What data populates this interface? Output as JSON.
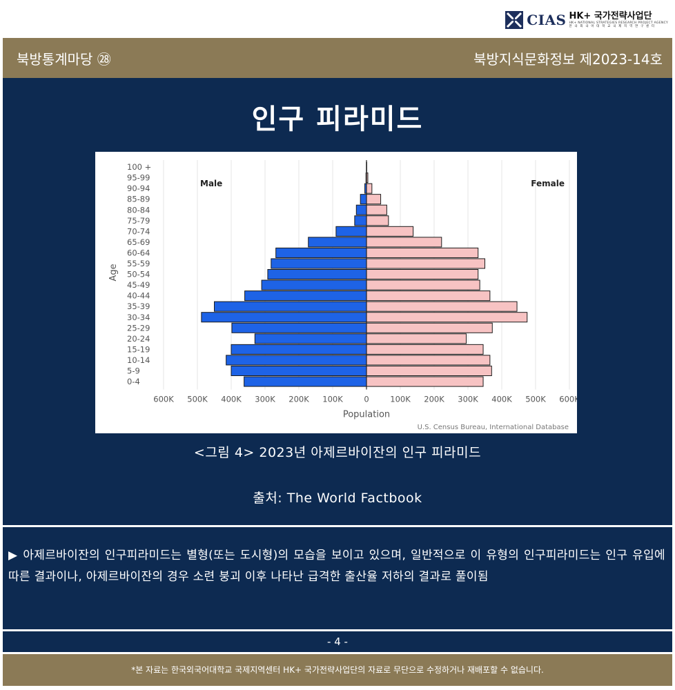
{
  "header": {
    "logo_text": "CIAS",
    "logo_title": "HK+ 국가전략사업단",
    "logo_subtitle": "HK+ NATIONAL STRATEGIES RESEARCH PROJECT AGENCY",
    "logo_subtitle2": "한 국 외 국 어 대 학 교   국 제 지 역 연 구 센 터"
  },
  "topbar": {
    "left": "북방통계마당 ㉘",
    "right": "북방지식문화정보 제2023-14호"
  },
  "title": "인구 피라미드",
  "chart_data": {
    "type": "bar",
    "orientation": "horizontal-pyramid",
    "categories": [
      "0-4",
      "5-9",
      "10-14",
      "15-19",
      "20-24",
      "25-29",
      "30-34",
      "35-39",
      "40-44",
      "45-49",
      "50-54",
      "55-59",
      "60-64",
      "65-69",
      "70-74",
      "75-79",
      "80-84",
      "85-89",
      "90-94",
      "95-99",
      "100 +"
    ],
    "series": [
      {
        "name": "Male",
        "color": "#1e63e6",
        "values": [
          362000,
          400000,
          415000,
          400000,
          330000,
          398000,
          488000,
          450000,
          360000,
          310000,
          292000,
          282000,
          268000,
          172000,
          90000,
          35000,
          30000,
          18000,
          5000,
          1500,
          300
        ]
      },
      {
        "name": "Female",
        "color": "#f7c3c3",
        "values": [
          345000,
          370000,
          365000,
          345000,
          295000,
          372000,
          475000,
          445000,
          365000,
          335000,
          330000,
          350000,
          330000,
          222000,
          138000,
          65000,
          60000,
          42000,
          16000,
          4000,
          800
        ]
      }
    ],
    "xlabel": "Population",
    "ylabel": "Age",
    "xlim": [
      -600000,
      600000
    ],
    "xticks": [
      "600K",
      "500K",
      "400K",
      "300K",
      "200K",
      "100K",
      "0",
      "100K",
      "200K",
      "300K",
      "400K",
      "500K",
      "600K"
    ],
    "annotations": {
      "left": "Male",
      "right": "Female",
      "credit": "U.S. Census Bureau, International Database"
    },
    "grid": "vertical",
    "legend": "none"
  },
  "caption": "<그림 4> 2023년 아제르바이잔의 인구 피라미드",
  "source": "출처: The World Factbook",
  "description": "▶ 아제르바이잔의 인구피라미드는 별형(또는 도시형)의 모습을 보이고 있으며, 일반적으로 이 유형의 인구피라미드는 인구 유입에 따른 결과이나, 아제르바이잔의 경우 소련 붕괴 이후 나타난 급격한 출산율 저하의 결과로 풀이됨",
  "page_number": "- 4 -",
  "footer": "*본 자료는 한국외국어대학교 국제지역센터 HK+ 국가전략사업단의 자료로 무단으로 수정하거나 재배포할 수 없습니다.",
  "colors": {
    "brand_gold": "#8b7a56",
    "brand_navy": "#0d2a51"
  }
}
